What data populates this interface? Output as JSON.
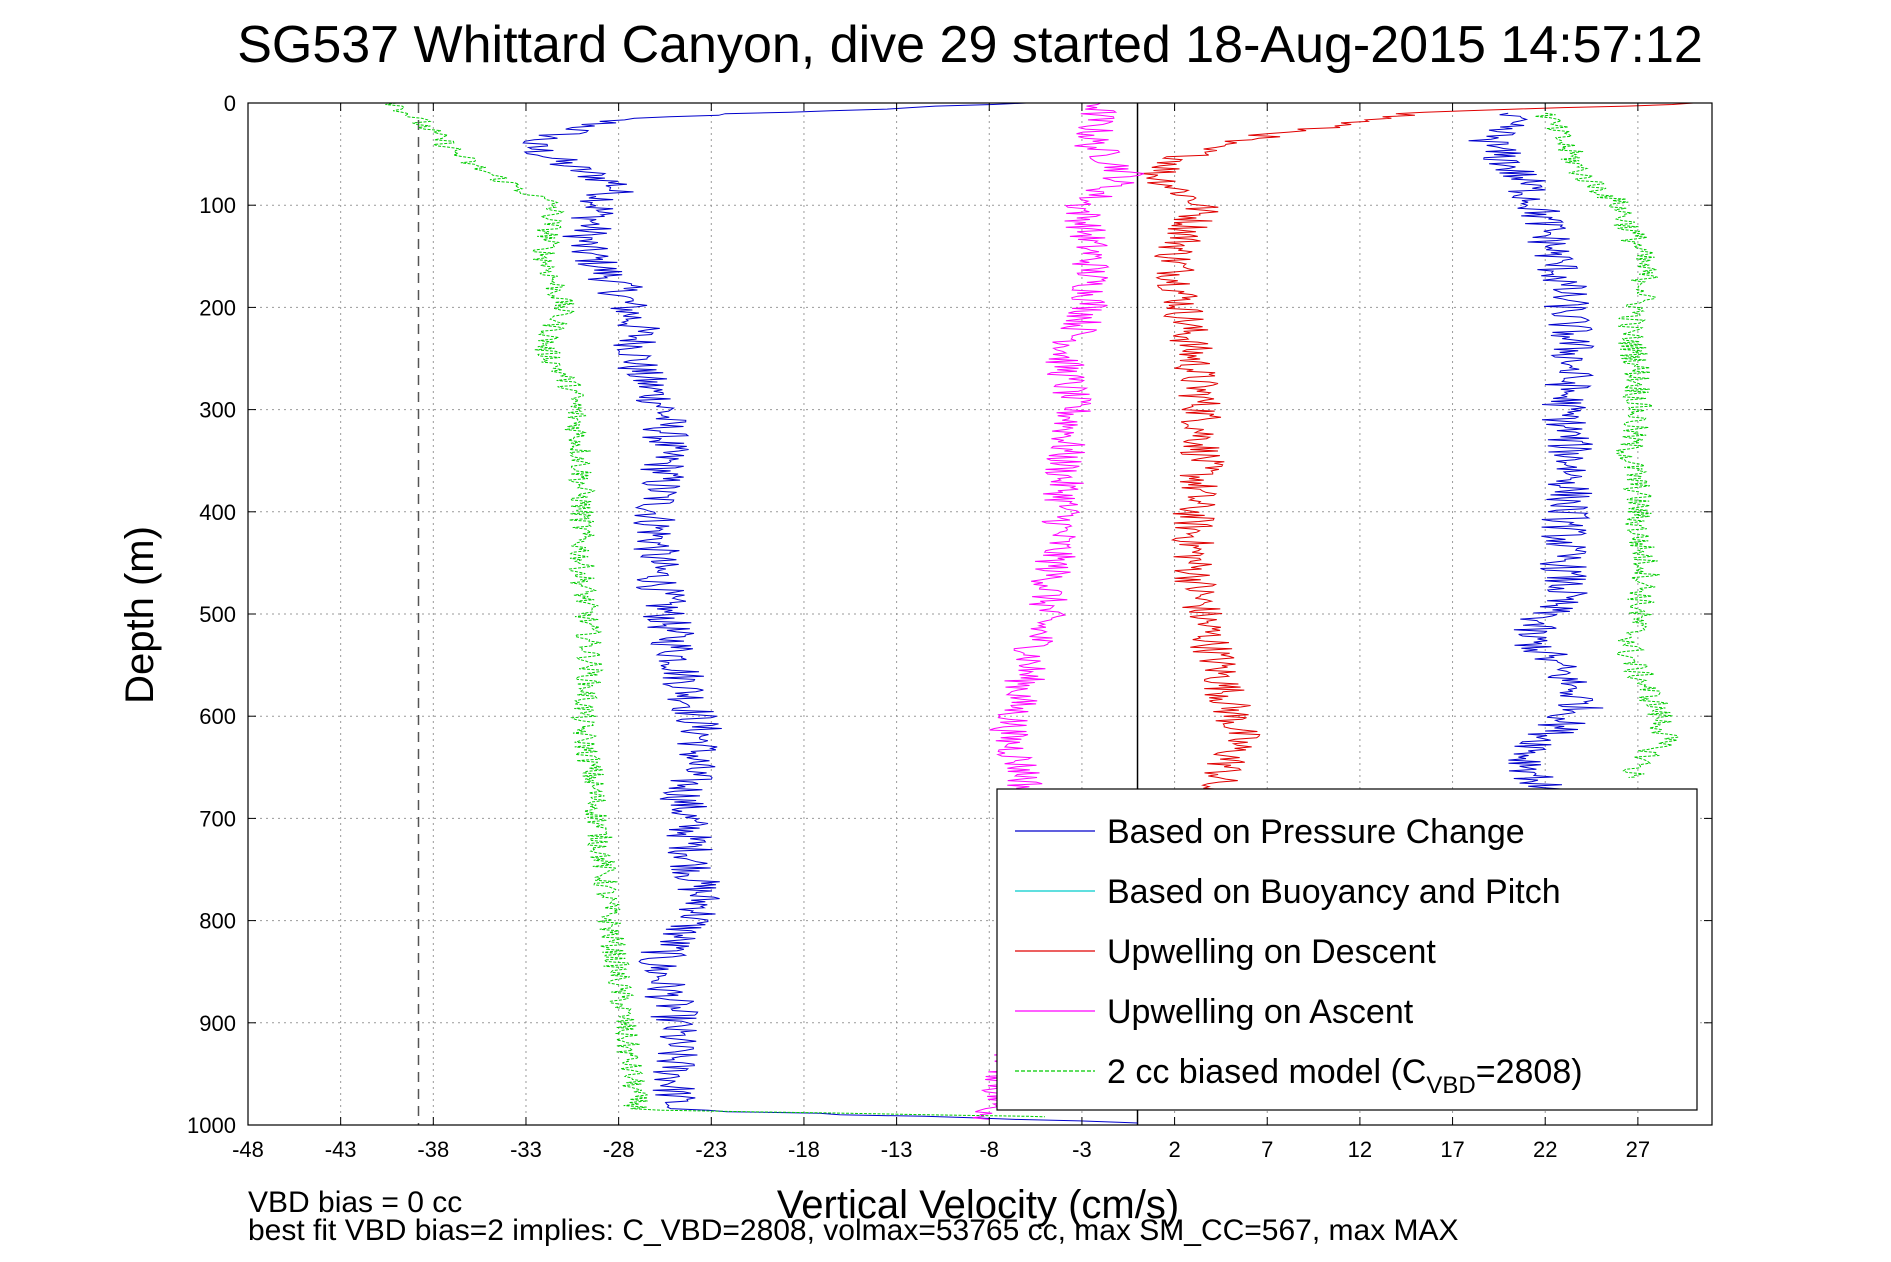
{
  "chart_data": {
    "type": "line",
    "title": "SG537 Whittard Canyon, dive 29 started 18-Aug-2015 14:57:12",
    "xlabel": "Vertical Velocity (cm/s)",
    "ylabel": "Depth (m)",
    "xlim": [
      -48,
      31
    ],
    "ylim": [
      0,
      1000
    ],
    "y_reversed": true,
    "grid": true,
    "x_ticks": [
      -48,
      -43,
      -38,
      -33,
      -28,
      -23,
      -18,
      -13,
      -8,
      -3,
      2,
      7,
      12,
      17,
      22,
      27
    ],
    "y_ticks": [
      0,
      100,
      200,
      300,
      400,
      500,
      600,
      700,
      800,
      900,
      1000
    ],
    "legend_position": "bottom-right",
    "reference_lines": [
      {
        "x": -38.8,
        "style": "dashed",
        "color": "#555555"
      },
      {
        "x": 0,
        "style": "solid",
        "color": "#000000"
      }
    ],
    "series": [
      {
        "name": "Based on Pressure Change",
        "color": "#0000cc",
        "noise": 1.3,
        "points": [
          [
            -6,
            0
          ],
          [
            -28,
            15
          ],
          [
            -33,
            40
          ],
          [
            -31,
            60
          ],
          [
            -28,
            80
          ],
          [
            -29,
            100
          ],
          [
            -30,
            140
          ],
          [
            -28,
            180
          ],
          [
            -27,
            220
          ],
          [
            -27,
            260
          ],
          [
            -25.5,
            300
          ],
          [
            -25.5,
            350
          ],
          [
            -26,
            400
          ],
          [
            -26,
            450
          ],
          [
            -25.5,
            500
          ],
          [
            -24.5,
            560
          ],
          [
            -23.5,
            620
          ],
          [
            -24.5,
            680
          ],
          [
            -24,
            740
          ],
          [
            -23.5,
            790
          ],
          [
            -26,
            840
          ],
          [
            -25,
            890
          ],
          [
            -25,
            940
          ],
          [
            -25,
            985
          ],
          [
            0,
            998
          ]
        ]
      },
      {
        "name": "Based on Buoyancy and Pitch",
        "color": "#00cccc",
        "noise": 0,
        "points": []
      },
      {
        "name": "Upwelling on Descent",
        "color": "#e00000",
        "noise": 1.2,
        "points": [
          [
            30,
            0
          ],
          [
            15,
            10
          ],
          [
            4,
            40
          ],
          [
            1,
            70
          ],
          [
            3.5,
            100
          ],
          [
            2,
            150
          ],
          [
            2.5,
            200
          ],
          [
            3,
            250
          ],
          [
            3.5,
            300
          ],
          [
            3.5,
            350
          ],
          [
            3,
            400
          ],
          [
            3,
            450
          ],
          [
            3.5,
            500
          ],
          [
            4.5,
            560
          ],
          [
            5.5,
            620
          ],
          [
            4.5,
            660
          ],
          [
            3.5,
            675
          ]
        ]
      },
      {
        "name": "Upwelling on Ascent",
        "color": "#ff00ff",
        "noise": 1.1,
        "points": [
          [
            -2,
            0
          ],
          [
            -2.5,
            40
          ],
          [
            -0.5,
            70
          ],
          [
            -3,
            100
          ],
          [
            -2.5,
            150
          ],
          [
            -2.5,
            200
          ],
          [
            -4,
            250
          ],
          [
            -3.5,
            300
          ],
          [
            -4,
            350
          ],
          [
            -4,
            400
          ],
          [
            -4.5,
            450
          ],
          [
            -5,
            500
          ],
          [
            -6,
            560
          ],
          [
            -7,
            620
          ],
          [
            -6,
            660
          ],
          [
            -6.5,
            920
          ],
          [
            -8,
            995
          ]
        ]
      },
      {
        "name": "2 cc biased model (C",
        "name_sub": "VBD",
        "name_suffix": "=2808)",
        "color": "#00cc00",
        "dashed": true,
        "noise": 0.7,
        "points": [
          [
            -40,
            0
          ],
          [
            -38,
            30
          ],
          [
            -36,
            60
          ],
          [
            -31.5,
            100
          ],
          [
            -32,
            150
          ],
          [
            -31,
            200
          ],
          [
            -32,
            240
          ],
          [
            -30.5,
            280
          ],
          [
            -30,
            350
          ],
          [
            -30,
            450
          ],
          [
            -29.5,
            550
          ],
          [
            -30,
            610
          ],
          [
            -29.5,
            650
          ],
          [
            -29,
            720
          ],
          [
            -28.5,
            800
          ],
          [
            -28,
            860
          ],
          [
            -27.5,
            930
          ],
          [
            -27,
            985
          ],
          [
            -5,
            992
          ]
        ]
      },
      {
        "name": "",
        "color": "#0000cc",
        "noise": 1.3,
        "points": [
          [
            20,
            10
          ],
          [
            19,
            40
          ],
          [
            21,
            80
          ],
          [
            22,
            120
          ],
          [
            23,
            180
          ],
          [
            23.5,
            250
          ],
          [
            23,
            300
          ],
          [
            23.5,
            360
          ],
          [
            23,
            420
          ],
          [
            23,
            480
          ],
          [
            21,
            520
          ],
          [
            23,
            560
          ],
          [
            24,
            590
          ],
          [
            21,
            640
          ],
          [
            22,
            680
          ]
        ]
      },
      {
        "name": "",
        "color": "#00cc00",
        "dashed": true,
        "noise": 0.8,
        "points": [
          [
            22,
            10
          ],
          [
            23,
            40
          ],
          [
            24,
            70
          ],
          [
            26,
            100
          ],
          [
            27,
            140
          ],
          [
            27.5,
            180
          ],
          [
            26.5,
            220
          ],
          [
            27,
            260
          ],
          [
            27,
            300
          ],
          [
            26.5,
            340
          ],
          [
            27,
            380
          ],
          [
            27,
            420
          ],
          [
            27.5,
            460
          ],
          [
            27,
            500
          ],
          [
            26.5,
            540
          ],
          [
            28,
            590
          ],
          [
            28.5,
            620
          ],
          [
            26.5,
            660
          ]
        ]
      }
    ]
  },
  "annotations": {
    "vbd_bias": "VBD bias = 0 cc",
    "best_fit": "best fit VBD bias=2 implies: C_VBD=2808, volmax=53765 cc, max SM_CC=567, max MAX"
  }
}
